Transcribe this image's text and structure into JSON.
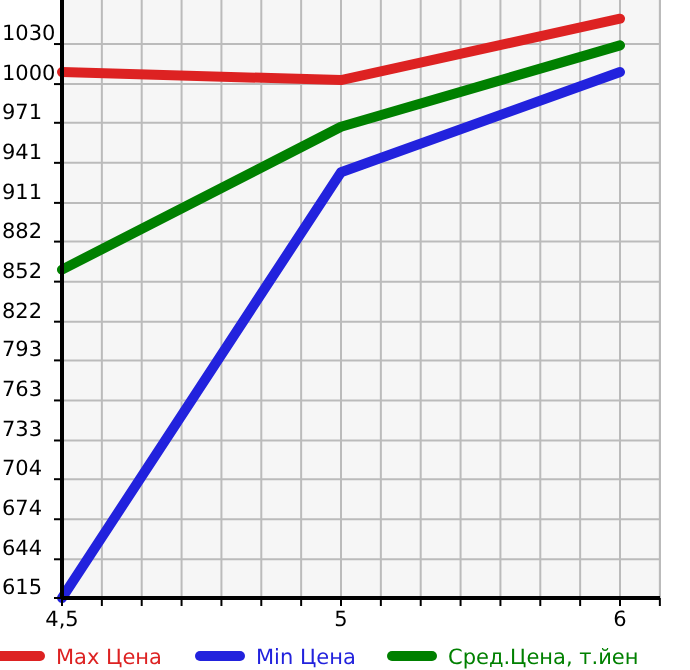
{
  "chart_data": {
    "type": "line",
    "categories": [
      "4,5",
      "5",
      "6"
    ],
    "series": [
      {
        "name": "Max Цена",
        "color": "#dd2222",
        "values": [
          1009,
          1003,
          1049
        ]
      },
      {
        "name": "Min Цена",
        "color": "#2222dd",
        "values": [
          615,
          934,
          1009
        ]
      },
      {
        "name": "Сред.Цена, т.йен",
        "color": "#008000",
        "values": [
          861,
          968,
          1029
        ]
      }
    ],
    "ylim": [
      615,
      1060
    ],
    "yticks": [
      615,
      644,
      674,
      704,
      733,
      763,
      793,
      822,
      852,
      882,
      911,
      941,
      971,
      1000,
      1030
    ],
    "grid": true,
    "legend": "bottom",
    "marker": "none",
    "line_style": "solid"
  }
}
